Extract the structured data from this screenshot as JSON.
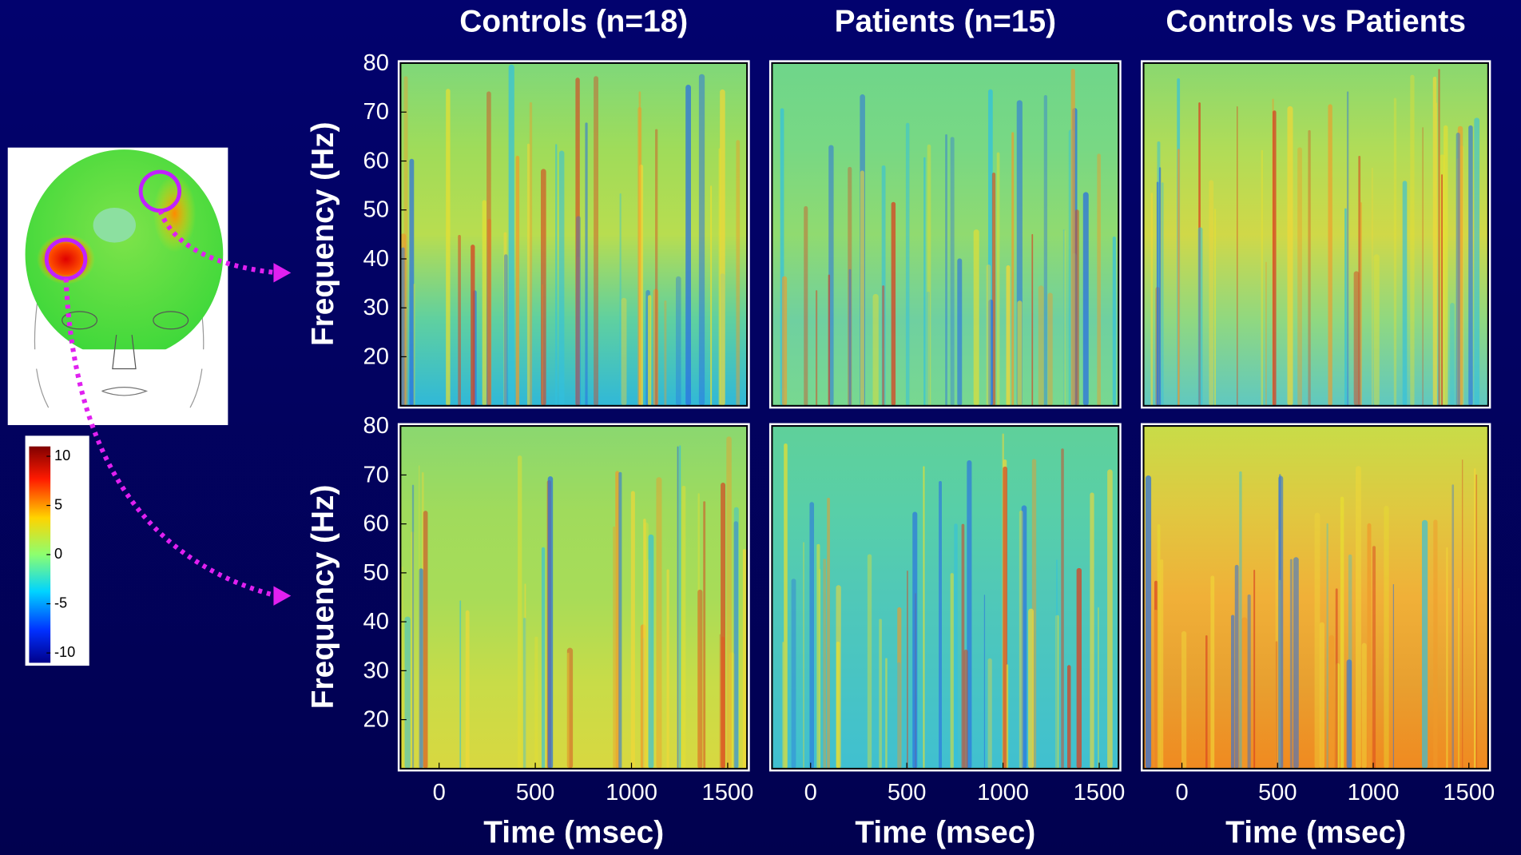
{
  "columns": [
    {
      "title": "Controls (n=18)"
    },
    {
      "title": "Patients (n=15)"
    },
    {
      "title": "Controls vs Patients"
    }
  ],
  "y_label": "Frequency (Hz)",
  "x_label": "Time (msec)",
  "xlim": [
    -200,
    1600
  ],
  "xticks": [
    0,
    500,
    1000,
    1500
  ],
  "ylim": [
    10,
    80
  ],
  "yticks": [
    20,
    30,
    40,
    50,
    60,
    70,
    80
  ],
  "colorbar": {
    "lim": [
      -11,
      11
    ],
    "ticks": [
      10,
      5,
      0,
      -5,
      -10
    ]
  }
}
